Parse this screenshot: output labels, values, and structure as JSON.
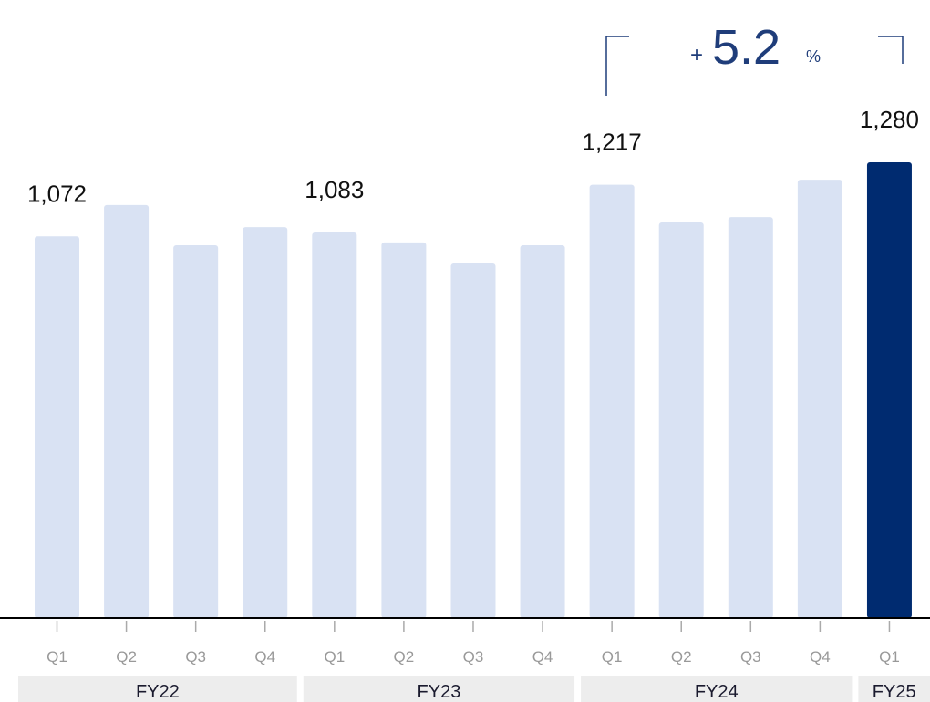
{
  "chart_data": {
    "type": "bar",
    "categories": [
      "Q1",
      "Q2",
      "Q3",
      "Q4",
      "Q1",
      "Q2",
      "Q3",
      "Q4",
      "Q1",
      "Q2",
      "Q3",
      "Q4",
      "Q1"
    ],
    "group_labels": [
      "FY22",
      "FY22",
      "FY22",
      "FY22",
      "FY23",
      "FY23",
      "FY23",
      "FY23",
      "FY24",
      "FY24",
      "FY24",
      "FY24",
      "FY25"
    ],
    "values": [
      1072,
      1160,
      1047,
      1098,
      1083,
      1055,
      996,
      1047,
      1217,
      1111,
      1126,
      1231,
      1280
    ],
    "value_labels": [
      "1,072",
      null,
      null,
      null,
      "1,083",
      null,
      null,
      null,
      "1,217",
      null,
      null,
      null,
      "1,280"
    ],
    "colors": [
      "#d9e2f3",
      "#d9e2f3",
      "#d9e2f3",
      "#d9e2f3",
      "#d9e2f3",
      "#d9e2f3",
      "#d9e2f3",
      "#d9e2f3",
      "#d9e2f3",
      "#d9e2f3",
      "#d9e2f3",
      "#d9e2f3",
      "#002b70"
    ],
    "ylim": [
      0,
      1280
    ],
    "annotation": {
      "sign": "+",
      "value": "5.2",
      "unit": "%"
    }
  }
}
